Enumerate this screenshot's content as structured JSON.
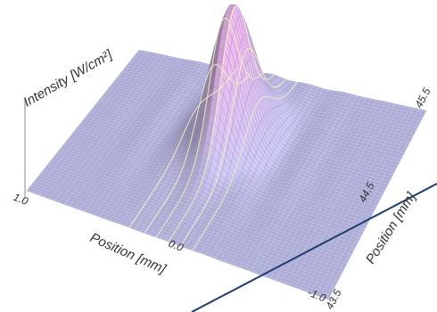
{
  "chart_data": {
    "type": "surface",
    "zlabel": "Intensity [W/cm²]",
    "xlabel": "Position [mm]",
    "ylabel": "Position [mm]",
    "x_ticks": [
      {
        "label": "1.0",
        "value": 1.0
      },
      {
        "label": "0.0",
        "value": 0.0
      },
      {
        "label": "-1.0",
        "value": -1.0
      }
    ],
    "y_ticks": [
      {
        "label": "43.5",
        "value": 43.5
      },
      {
        "label": "44.5",
        "value": 44.5
      },
      {
        "label": "45.5",
        "value": 45.5
      }
    ],
    "xlim": [
      1.0,
      -1.0
    ],
    "ylim": [
      43.5,
      45.5
    ],
    "peak": {
      "x": 0.08,
      "y": 44.75
    },
    "grid": true,
    "colors": {
      "surface_flat": "#b7b7dd",
      "surface_peak": "#d9a6d6",
      "grid_line": "#8f8fbf",
      "ridge_line": "#f4efc2",
      "overlay_line": "#1c3d6e"
    }
  }
}
